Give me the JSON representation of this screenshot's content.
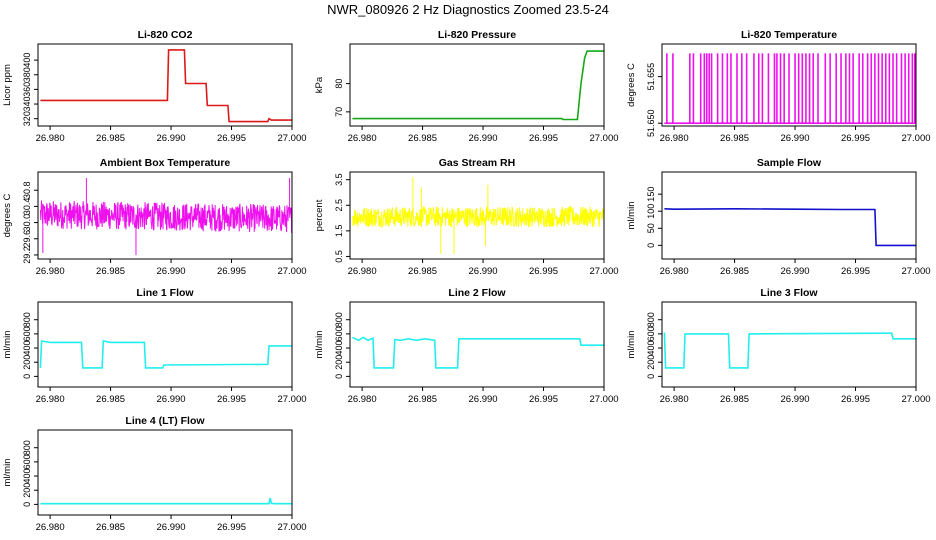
{
  "title": "NWR_080926  2 Hz Diagnostics Zoomed 23.5-24",
  "x_ticks": [
    26.98,
    26.985,
    26.99,
    26.995,
    27.0
  ],
  "x_tick_labels": [
    "26.980",
    "26.985",
    "26.990",
    "26.995",
    "27.000"
  ],
  "xlim": [
    26.979,
    27.0
  ],
  "chart_data": [
    {
      "type": "line",
      "title": "Li-820 CO2",
      "ylabel": "Licor ppm",
      "color": "#dd1a1a",
      "ylim": [
        310,
        422
      ],
      "y_ticks": [
        320,
        340,
        360,
        380,
        400
      ],
      "y_tick_labels": [
        "320",
        "340",
        "360",
        "380",
        "400"
      ],
      "series": [
        {
          "x": [
            26.9792,
            26.985,
            26.9897,
            26.9898,
            26.9911,
            26.9912,
            26.9929,
            26.993,
            26.9947,
            26.9948,
            26.998,
            26.9981,
            26.9983,
            27.0
          ],
          "y": [
            345,
            345,
            345,
            414,
            414,
            368,
            368,
            338,
            338,
            316,
            316,
            320,
            318,
            318
          ]
        }
      ]
    },
    {
      "type": "line",
      "title": "Li-820 Pressure",
      "ylabel": "kPa",
      "color": "#17a817",
      "ylim": [
        65,
        94
      ],
      "y_ticks": [
        70,
        80
      ],
      "y_tick_labels": [
        "70",
        "80"
      ],
      "series": [
        {
          "x": [
            26.9792,
            26.9965,
            26.9966,
            26.9978,
            26.9981,
            26.9984,
            26.9986,
            27.0
          ],
          "y": [
            67.6,
            67.6,
            67.3,
            67.3,
            80,
            89,
            91.5,
            91.5
          ]
        }
      ]
    },
    {
      "type": "line",
      "title": "Li-820 Temperature",
      "ylabel": "degrees C",
      "color": "#ee11ee",
      "ylim": [
        51.6497,
        51.6585
      ],
      "y_ticks": [
        51.65,
        51.655
      ],
      "y_tick_labels": [
        "51.650",
        "51.655"
      ],
      "series": [
        {
          "name": "",
          "x": [
            26.9792,
            27.0
          ],
          "y": [
            51.65,
            51.65
          ]
        }
      ],
      "spikes": {
        "low": 51.65,
        "high": 51.6575,
        "x": [
          26.9794,
          26.9799,
          26.9813,
          26.9816,
          26.9822,
          26.9825,
          26.9827,
          26.9829,
          26.9831,
          26.9836,
          26.984,
          26.9844,
          26.9847,
          26.9852,
          26.9856,
          26.986,
          26.9866,
          26.987,
          26.9873,
          26.9878,
          26.9883,
          26.9885,
          26.9888,
          26.9891,
          26.9895,
          26.99,
          26.9903,
          26.9906,
          26.9909,
          26.9912,
          26.9915,
          26.9919,
          26.9925,
          26.9929,
          26.9934,
          26.9938,
          26.9942,
          26.9945,
          26.9948,
          26.9953,
          26.9956,
          26.996,
          26.9963,
          26.9966,
          26.9969,
          26.9972,
          26.9975,
          26.9978,
          26.9981,
          26.9984,
          26.9988,
          26.9991,
          26.9994,
          26.9997,
          26.9999
        ]
      }
    },
    {
      "type": "line",
      "title": "Ambient Box Temperature",
      "ylabel": "degrees C",
      "color": "#ee11ee",
      "ylim": [
        29.1,
        31.25
      ],
      "y_ticks": [
        29.2,
        29.6,
        30.0,
        30.4,
        30.8
      ],
      "y_tick_labels": [
        "29.2",
        "29.6",
        "30.0",
        "30.4",
        "30.8"
      ],
      "noise": {
        "x_start": 26.9792,
        "x_end": 27.0,
        "center": 30.2,
        "amplitude": 0.35,
        "n": 700,
        "trend": -0.35,
        "extremes": [
          [
            26.9794,
            29.25
          ],
          [
            26.9871,
            29.2
          ],
          [
            26.983,
            31.1
          ],
          [
            26.9998,
            31.1
          ]
        ]
      }
    },
    {
      "type": "line",
      "title": "Gas Stream RH",
      "ylabel": "percent",
      "color": "#ffff00",
      "ylim": [
        0.4,
        3.8
      ],
      "y_ticks": [
        0.5,
        1.5,
        2.5,
        3.5
      ],
      "y_tick_labels": [
        "0.5",
        "1.5",
        "2.5",
        "3.5"
      ],
      "noise": {
        "x_start": 26.9792,
        "x_end": 27.0,
        "center": 2.05,
        "amplitude": 0.4,
        "n": 700,
        "trend": 0,
        "extremes": [
          [
            26.9842,
            3.6
          ],
          [
            26.9865,
            0.6
          ],
          [
            26.9876,
            0.6
          ],
          [
            26.9904,
            3.3
          ],
          [
            26.9902,
            0.9
          ],
          [
            26.9849,
            3.2
          ]
        ]
      }
    },
    {
      "type": "line",
      "title": "Sample Flow",
      "ylabel": "ml/min",
      "color": "#1111cc",
      "ylim": [
        -40,
        215
      ],
      "y_ticks": [
        0,
        50,
        100,
        150
      ],
      "y_tick_labels": [
        "0",
        "50",
        "100",
        "150"
      ],
      "series": [
        {
          "x": [
            26.9792,
            26.98,
            26.985,
            26.99,
            26.994,
            26.9966,
            26.9967,
            27.0
          ],
          "y": [
            107,
            106,
            107,
            106,
            105,
            105,
            0,
            0
          ]
        }
      ]
    },
    {
      "type": "line",
      "title": "Line 1 Flow",
      "ylabel": "ml/min",
      "color": "#22eeee",
      "ylim": [
        -150,
        1050
      ],
      "y_ticks": [
        0,
        200,
        400,
        600,
        800
      ],
      "y_tick_labels": [
        "0",
        "200",
        "400",
        "600",
        "800"
      ],
      "series": [
        {
          "x": [
            26.9792,
            26.9793,
            26.98,
            26.9826,
            26.9827,
            26.9843,
            26.9844,
            26.985,
            26.9878,
            26.9879,
            26.9893,
            26.9894,
            26.998,
            26.9981,
            27.0
          ],
          "y": [
            120,
            500,
            480,
            480,
            120,
            120,
            500,
            480,
            480,
            120,
            120,
            160,
            170,
            430,
            430
          ]
        }
      ]
    },
    {
      "type": "line",
      "title": "Line 2 Flow",
      "ylabel": "ml/min",
      "color": "#22eeee",
      "ylim": [
        -150,
        1050
      ],
      "y_ticks": [
        0,
        200,
        400,
        600,
        800
      ],
      "y_tick_labels": [
        "0",
        "200",
        "400",
        "600",
        "800"
      ],
      "series": [
        {
          "x": [
            26.9792,
            26.9797,
            26.9801,
            26.9805,
            26.9809,
            26.981,
            26.9826,
            26.9827,
            26.9832,
            26.9838,
            26.9845,
            26.9852,
            26.986,
            26.9861,
            26.9879,
            26.988,
            26.998,
            26.9981,
            27.0
          ],
          "y": [
            550,
            510,
            550,
            510,
            540,
            120,
            120,
            520,
            510,
            530,
            510,
            530,
            510,
            120,
            120,
            530,
            530,
            440,
            440
          ]
        }
      ]
    },
    {
      "type": "line",
      "title": "Line 3 Flow",
      "ylabel": "ml/min",
      "color": "#22eeee",
      "ylim": [
        -150,
        1050
      ],
      "y_ticks": [
        0,
        200,
        400,
        600,
        800
      ],
      "y_tick_labels": [
        "0",
        "200",
        "400",
        "600",
        "800"
      ],
      "series": [
        {
          "x": [
            26.9792,
            26.9793,
            26.9794,
            26.9808,
            26.9809,
            26.9845,
            26.9846,
            26.9861,
            26.9862,
            26.998,
            26.9981,
            27.0
          ],
          "y": [
            620,
            120,
            120,
            120,
            600,
            600,
            120,
            120,
            600,
            610,
            530,
            530
          ]
        }
      ]
    },
    {
      "type": "line",
      "title": "Line 4 (LT) Flow",
      "ylabel": "ml/min",
      "color": "#22eeee",
      "ylim": [
        -150,
        1050
      ],
      "y_ticks": [
        0,
        200,
        400,
        600,
        800
      ],
      "y_tick_labels": [
        "0",
        "200",
        "400",
        "600",
        "800"
      ],
      "series": [
        {
          "x": [
            26.9792,
            26.9981,
            26.9982,
            26.9983,
            26.9985,
            27.0
          ],
          "y": [
            10,
            10,
            90,
            15,
            10,
            10
          ]
        }
      ]
    }
  ]
}
